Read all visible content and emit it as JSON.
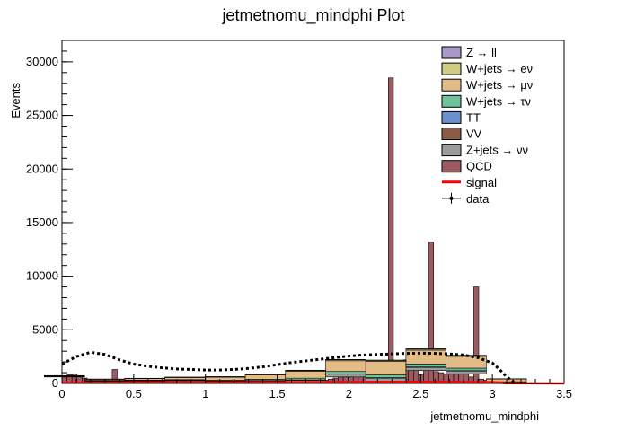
{
  "chart_data": {
    "type": "bar",
    "title": "jetmetnomu_mindphi Plot",
    "xlabel": "jetmetnomu_mindphi",
    "ylabel": "Events",
    "xlim": [
      0,
      3.5
    ],
    "ylim": [
      0,
      32000
    ],
    "x_ticks": [
      0,
      0.5,
      1,
      1.5,
      2,
      2.5,
      3,
      3.5
    ],
    "x_tick_labels": [
      "0",
      "0.5",
      "1",
      "1.5",
      "2",
      "2.5",
      "3",
      "3.5"
    ],
    "y_ticks": [
      0,
      5000,
      10000,
      15000,
      20000,
      25000,
      30000
    ],
    "y_tick_labels": [
      "0",
      "5000",
      "10000",
      "15000",
      "20000",
      "25000",
      "30000"
    ],
    "bin_width": 0.035,
    "legend_position": "top-right",
    "legend": [
      {
        "label": "Z → ll",
        "color": "#a999c7",
        "kind": "box"
      },
      {
        "label": "W+jets → eν",
        "color": "#cfcd85",
        "kind": "box"
      },
      {
        "label": "W+jets → μν",
        "color": "#e3bb84",
        "kind": "box"
      },
      {
        "label": "W+jets → τν",
        "color": "#6fc39c",
        "kind": "box"
      },
      {
        "label": "TT",
        "color": "#6c8fd0",
        "kind": "box"
      },
      {
        "label": "VV",
        "color": "#8c5a45",
        "kind": "box"
      },
      {
        "label": "Z+jets → νν",
        "color": "#9c9c9c",
        "kind": "box"
      },
      {
        "label": "QCD",
        "color": "#9c5a62",
        "kind": "box"
      },
      {
        "label": "signal",
        "color": "#ff0000",
        "kind": "line"
      },
      {
        "label": "data",
        "color": "#000000",
        "kind": "marker"
      }
    ],
    "series": [
      {
        "name": "Z → ll",
        "color": "#a999c7",
        "x": [
          0.0175,
          0.2975,
          0.5775,
          0.8575,
          1.1375,
          1.4175,
          1.6975,
          1.9775,
          2.2575,
          2.5375,
          2.8175,
          3.0975
        ],
        "values": [
          5,
          8,
          10,
          12,
          15,
          20,
          25,
          30,
          30,
          28,
          22,
          5
        ]
      },
      {
        "name": "W+jets → eν",
        "color": "#cfcd85",
        "x": [
          0.0175,
          0.2975,
          0.5775,
          0.8575,
          1.1375,
          1.4175,
          1.6975,
          1.9775,
          2.2575,
          2.5375,
          2.8175,
          3.0975
        ],
        "values": [
          10,
          15,
          20,
          25,
          35,
          50,
          70,
          90,
          100,
          95,
          80,
          20
        ]
      },
      {
        "name": "W+jets → μν",
        "color": "#e3bb84",
        "x": [
          0.0175,
          0.2975,
          0.5775,
          0.8575,
          1.1375,
          1.4175,
          1.6975,
          1.9775,
          2.2575,
          2.5375,
          2.8175,
          3.0975
        ],
        "values": [
          60,
          100,
          140,
          200,
          280,
          420,
          650,
          1000,
          1250,
          1300,
          1100,
          250
        ]
      },
      {
        "name": "W+jets → τν",
        "color": "#6fc39c",
        "x": [
          0.0175,
          0.2975,
          0.5775,
          0.8575,
          1.1375,
          1.4175,
          1.6975,
          1.9775,
          2.2575,
          2.5375,
          2.8175,
          3.0975
        ],
        "values": [
          20,
          30,
          40,
          55,
          75,
          110,
          160,
          220,
          260,
          270,
          230,
          60
        ]
      },
      {
        "name": "TT",
        "color": "#6c8fd0",
        "x": [
          0.0175,
          0.2975,
          0.5775,
          0.8575,
          1.1375,
          1.4175,
          1.6975,
          1.9775,
          2.2575,
          2.5375,
          2.8175,
          3.0975
        ],
        "values": [
          5,
          6,
          8,
          10,
          12,
          14,
          18,
          20,
          22,
          22,
          20,
          5
        ]
      },
      {
        "name": "VV",
        "color": "#8c5a45",
        "x": [
          0.0175,
          0.2975,
          0.5775,
          0.8575,
          1.1375,
          1.4175,
          1.6975,
          1.9775,
          2.2575,
          2.5375,
          2.8175,
          3.0975
        ],
        "values": [
          2,
          3,
          4,
          5,
          6,
          8,
          10,
          12,
          14,
          14,
          12,
          3
        ]
      },
      {
        "name": "Z+jets → νν",
        "color": "#9c9c9c",
        "x": [
          0.0175,
          0.2975,
          0.5775,
          0.8575,
          1.1375,
          1.4175,
          1.6975,
          1.9775,
          2.2575,
          2.5375,
          2.8175,
          3.0975
        ],
        "values": [
          30,
          45,
          60,
          80,
          110,
          150,
          200,
          260,
          300,
          300,
          260,
          70
        ]
      },
      {
        "name": "QCD",
        "color": "#9c5a62",
        "x": [
          0.0175,
          0.0525,
          0.0875,
          0.1225,
          0.1575,
          0.1925,
          0.2275,
          0.2625,
          0.2975,
          0.3325,
          0.3675,
          0.4025,
          0.4375,
          0.4725,
          0.5075,
          0.5425,
          0.5775,
          0.6125,
          0.6475,
          0.6825,
          0.7175,
          0.7525,
          0.7875,
          0.8225,
          0.8575,
          0.8925,
          0.9275,
          0.9625,
          0.9975,
          1.0325,
          1.0675,
          1.1025,
          1.1375,
          1.1725,
          1.2075,
          1.2425,
          1.2775,
          1.3125,
          1.3475,
          1.3825,
          1.4175,
          1.4525,
          1.4875,
          1.5225,
          1.5575,
          1.5925,
          1.6275,
          1.6625,
          1.6975,
          1.7325,
          1.7675,
          1.8025,
          1.8375,
          1.8725,
          1.9075,
          1.9425,
          1.9775,
          2.0125,
          2.0475,
          2.0825,
          2.1175,
          2.1525,
          2.1875,
          2.2225,
          2.2575,
          2.2925,
          2.3275,
          2.3625,
          2.3975,
          2.4325,
          2.4675,
          2.5025,
          2.5375,
          2.5725,
          2.6075,
          2.6425,
          2.6775,
          2.7125,
          2.7475,
          2.7825,
          2.8175,
          2.8525,
          2.8875,
          2.9225,
          2.9575,
          2.9925,
          3.0275,
          3.0625,
          3.0975
        ],
        "values": [
          600,
          800,
          900,
          700,
          500,
          400,
          300,
          250,
          200,
          150,
          1300,
          100,
          100,
          100,
          100,
          100,
          200,
          100,
          100,
          100,
          200,
          100,
          100,
          100,
          200,
          100,
          100,
          100,
          200,
          400,
          300,
          200,
          100,
          100,
          100,
          100,
          100,
          100,
          100,
          100,
          100,
          100,
          150,
          150,
          200,
          200,
          100,
          100,
          100,
          100,
          150,
          200,
          300,
          400,
          500,
          600,
          600,
          800,
          900,
          900,
          1300,
          900,
          1200,
          1100,
          200,
          28500,
          200,
          1500,
          2200,
          1500,
          1300,
          800,
          1200,
          13200,
          1100,
          1000,
          900,
          900,
          2200,
          1800,
          900,
          600,
          9000,
          400,
          300,
          200,
          100,
          50,
          20
        ]
      },
      {
        "name": "signal",
        "color": "#ff0000",
        "x": [
          0.0,
          0.5,
          1.0,
          1.5,
          2.0,
          2.5,
          3.0,
          3.1,
          3.5
        ],
        "values": [
          60,
          70,
          80,
          100,
          130,
          150,
          120,
          20,
          0
        ]
      },
      {
        "name": "data",
        "color": "#000000",
        "x": [
          0.0,
          0.1,
          0.2,
          0.3,
          0.4,
          0.5,
          0.6,
          0.7,
          0.8,
          0.9,
          1.0,
          1.1,
          1.2,
          1.3,
          1.4,
          1.5,
          1.6,
          1.7,
          1.8,
          1.9,
          2.0,
          2.1,
          2.2,
          2.3,
          2.4,
          2.5,
          2.6,
          2.7,
          2.8,
          2.9,
          3.0,
          3.05,
          3.1,
          3.15
        ],
        "values": [
          1800,
          2500,
          2900,
          2700,
          2200,
          1800,
          1600,
          1450,
          1350,
          1300,
          1250,
          1250,
          1300,
          1400,
          1550,
          1750,
          1950,
          2100,
          2250,
          2400,
          2550,
          2650,
          2700,
          2750,
          2800,
          2820,
          2800,
          2750,
          2650,
          2400,
          1900,
          1300,
          600,
          150
        ]
      }
    ]
  }
}
